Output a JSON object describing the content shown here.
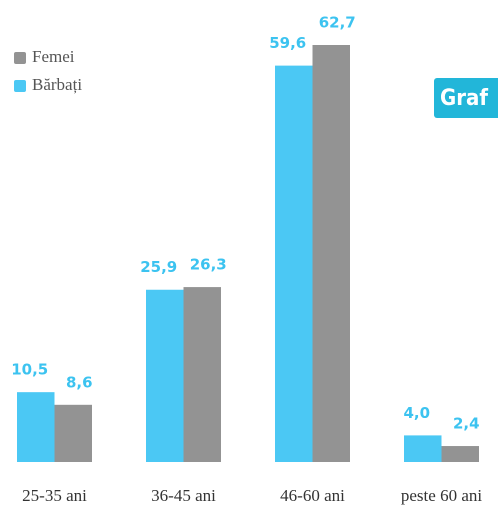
{
  "chart_data": {
    "type": "bar",
    "categories": [
      "25-35 ani",
      "36-45 ani",
      "46-60 ani",
      "peste 60 ani"
    ],
    "series": [
      {
        "name": "Bărbați",
        "color": "#4bc8f4",
        "values": [
          10.5,
          25.9,
          59.6,
          4.0
        ],
        "value_labels": [
          "10,5",
          "25,9",
          "59,6",
          "4,0"
        ]
      },
      {
        "name": "Femei",
        "color": "#939393",
        "values": [
          8.6,
          26.3,
          62.7,
          2.4
        ],
        "value_labels": [
          "8,6",
          "26,3",
          "62,7",
          "2,4"
        ]
      }
    ],
    "label_color": "#3cc3f0",
    "legend": "upper left",
    "tag": "Graf"
  }
}
